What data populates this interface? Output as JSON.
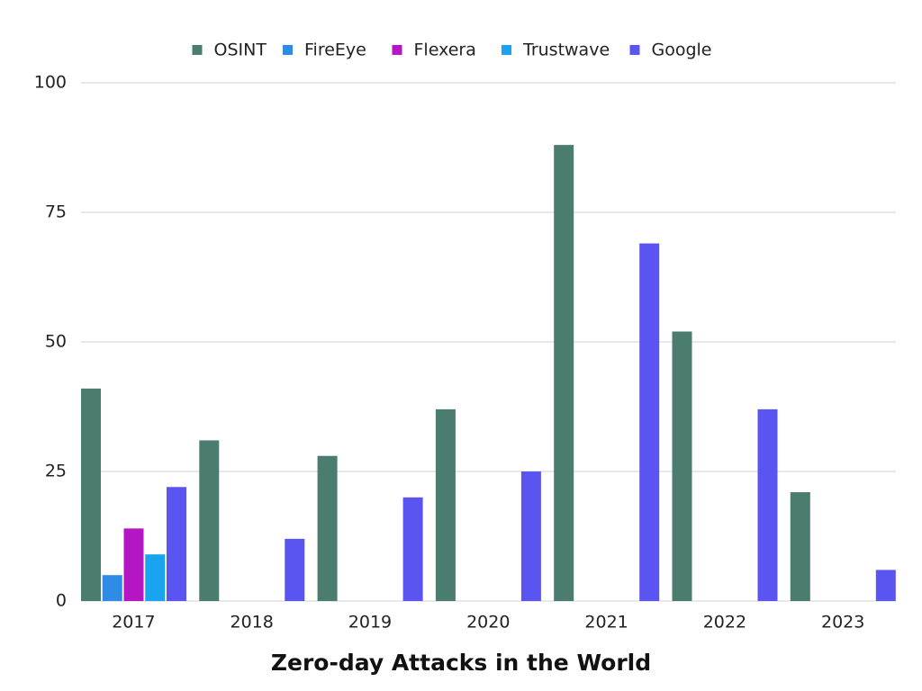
{
  "chart_data": {
    "type": "bar",
    "title": "Zero-day Attacks in the World",
    "categories": [
      "2017",
      "2018",
      "2019",
      "2020",
      "2021",
      "2022",
      "2023"
    ],
    "series": [
      {
        "name": "OSINT",
        "color": "#4a7c6f",
        "values": [
          41,
          31,
          28,
          37,
          88,
          52,
          21
        ]
      },
      {
        "name": "FireEye",
        "color": "#2e8be6",
        "values": [
          5,
          0,
          0,
          0,
          0,
          0,
          0
        ]
      },
      {
        "name": "Flexera",
        "color": "#b516c4",
        "values": [
          14,
          0,
          0,
          0,
          0,
          0,
          0
        ]
      },
      {
        "name": "Trustwave",
        "color": "#1aa3ee",
        "values": [
          9,
          0,
          0,
          0,
          0,
          0,
          0
        ]
      },
      {
        "name": "Google",
        "color": "#5a55f0",
        "values": [
          22,
          12,
          20,
          25,
          69,
          37,
          6
        ]
      }
    ],
    "ylim": [
      0,
      100
    ],
    "yticks": [
      0,
      25,
      50,
      75,
      100
    ],
    "grid": true,
    "legend": "top"
  }
}
